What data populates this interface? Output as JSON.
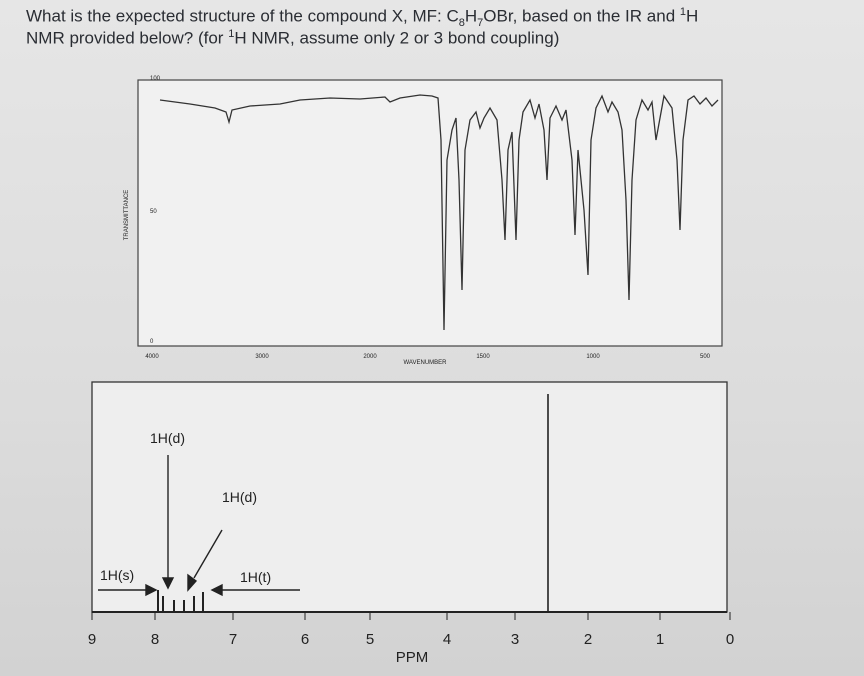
{
  "question": {
    "line1": [
      {
        "text": "What is the expected structure of the compound X, MF: C"
      },
      {
        "sub": "8"
      },
      {
        "text": "H"
      },
      {
        "sub": "7"
      },
      {
        "text": "OBr, based on the IR and "
      },
      {
        "sup": "1"
      },
      {
        "text": "H"
      }
    ],
    "line2": [
      {
        "text": "NMR provided below? (for "
      },
      {
        "sup": "1"
      },
      {
        "text": "H NMR, assume only 2 or 3 bond coupling)"
      }
    ]
  },
  "ir": {
    "x_label": "WAVENUMBER",
    "y_label": "TRANSMITTANCE",
    "xticks": [
      "4000",
      "3000",
      "2000",
      "1500",
      "1000",
      "500"
    ],
    "yticks": [
      "100",
      "50",
      "0"
    ]
  },
  "nmr": {
    "x_label": "PPM",
    "xticks": [
      "9",
      "8",
      "7",
      "6",
      "5",
      "4",
      "3",
      "2",
      "1",
      "0"
    ],
    "labels": [
      "1H(d)",
      "1H(d)",
      "1H(s)",
      "1H(t)"
    ]
  }
}
